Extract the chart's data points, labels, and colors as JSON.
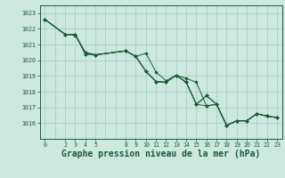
{
  "background_color": "#cce8df",
  "grid_color": "#aacfc7",
  "line_color": "#1a5c35",
  "marker_color": "#1a5c35",
  "xlabel": "Graphe pression niveau de la mer (hPa)",
  "xlabel_fontsize": 7.0,
  "ylim": [
    1015.0,
    1023.5
  ],
  "yticks": [
    1016,
    1017,
    1018,
    1019,
    1020,
    1021,
    1022,
    1023
  ],
  "xtick_positions": [
    0,
    2,
    3,
    4,
    5,
    8,
    9,
    10,
    11,
    12,
    13,
    14,
    15,
    16,
    17,
    18,
    19,
    20,
    21,
    22,
    23
  ],
  "xtick_labels": [
    "0",
    "2",
    "3",
    "4",
    "5",
    "8",
    "9",
    "10",
    "11",
    "12",
    "13",
    "14",
    "15",
    "16",
    "17",
    "18",
    "19",
    "20",
    "21",
    "22",
    "23"
  ],
  "xlim": [
    -0.5,
    23.5
  ],
  "series": [
    {
      "x": [
        0,
        2,
        3,
        4,
        5,
        8,
        9,
        10,
        11,
        12,
        13,
        14,
        15,
        16,
        17,
        18,
        19,
        20,
        21,
        22,
        23
      ],
      "y": [
        1022.6,
        1021.65,
        1021.65,
        1020.4,
        1020.35,
        1020.6,
        1020.25,
        1020.45,
        1019.25,
        1018.7,
        1019.05,
        1018.85,
        1018.6,
        1017.1,
        1017.2,
        1015.85,
        1016.15,
        1016.15,
        1016.6,
        1016.45,
        1016.35
      ]
    },
    {
      "x": [
        0,
        2,
        3,
        4,
        5,
        8,
        9,
        10,
        11,
        12,
        13,
        14,
        15,
        16,
        17,
        18,
        19,
        20,
        21,
        22,
        23
      ],
      "y": [
        1022.6,
        1021.65,
        1021.65,
        1020.4,
        1020.35,
        1020.6,
        1020.25,
        1019.3,
        1018.65,
        1018.6,
        1019.05,
        1018.6,
        1017.2,
        1017.75,
        1017.2,
        1015.85,
        1016.15,
        1016.15,
        1016.6,
        1016.45,
        1016.35
      ]
    },
    {
      "x": [
        0,
        2,
        3,
        4,
        5,
        8,
        9,
        10,
        11,
        12,
        13,
        14,
        15,
        16,
        17,
        18,
        19,
        20,
        21,
        22,
        23
      ],
      "y": [
        1022.6,
        1021.65,
        1021.65,
        1020.5,
        1020.35,
        1020.6,
        1020.25,
        1019.3,
        1018.65,
        1018.6,
        1019.05,
        1018.6,
        1017.2,
        1017.1,
        1017.2,
        1015.85,
        1016.15,
        1016.15,
        1016.6,
        1016.45,
        1016.35
      ]
    },
    {
      "x": [
        0,
        2,
        3,
        4,
        5,
        8,
        9,
        10,
        11,
        12,
        13,
        14,
        15,
        16,
        17,
        18,
        19,
        20,
        21,
        22,
        23
      ],
      "y": [
        1022.6,
        1021.65,
        1021.6,
        1020.5,
        1020.35,
        1020.6,
        1020.25,
        1019.3,
        1018.65,
        1018.6,
        1019.05,
        1018.6,
        1017.2,
        1017.75,
        1017.2,
        1015.85,
        1016.15,
        1016.15,
        1016.6,
        1016.45,
        1016.35
      ]
    }
  ]
}
